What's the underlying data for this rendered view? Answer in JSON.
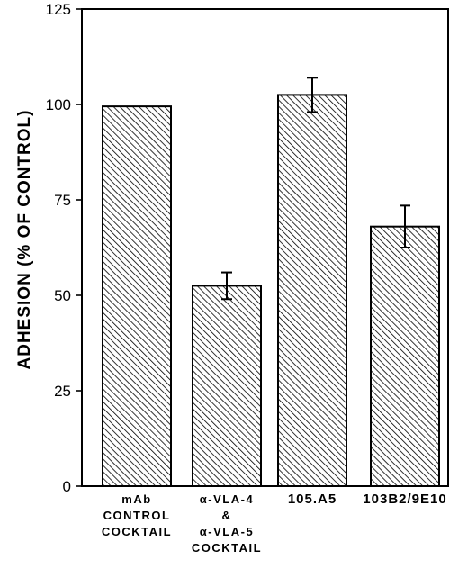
{
  "chart_data": {
    "type": "bar",
    "title": "",
    "ylabel": "ADHESION (% OF CONTROL)",
    "xlabel": "",
    "ylim": [
      0,
      125
    ],
    "yticks": [
      "0",
      "25",
      "50",
      "75",
      "100",
      "125"
    ],
    "categories": [
      {
        "lines": [
          "mAb",
          "CONTROL",
          "COCKTAIL"
        ]
      },
      {
        "lines": [
          "α-VLA-4",
          "&",
          "α-VLA-5",
          "COCKTAIL"
        ]
      },
      {
        "lines": [
          "105.A5"
        ]
      },
      {
        "lines": [
          "103B2/9E10"
        ]
      }
    ],
    "values": [
      99.5,
      52.5,
      102.5,
      68.0
    ],
    "errors": [
      0,
      3.5,
      4.5,
      5.5
    ],
    "bar_fill": "hatched",
    "bar_color": "#000000",
    "grid": false
  }
}
